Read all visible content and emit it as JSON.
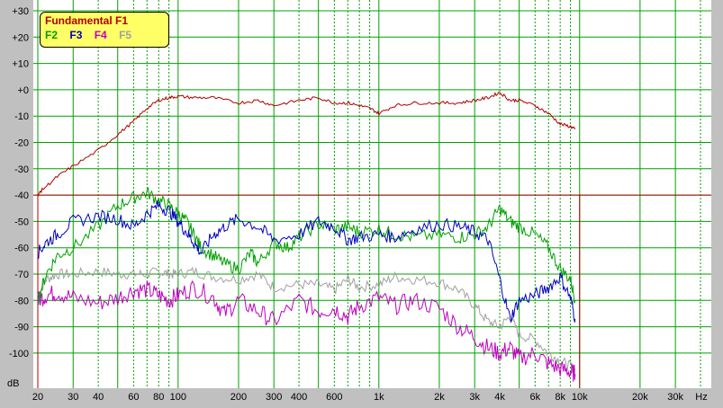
{
  "chart_data": {
    "type": "line",
    "title": "",
    "ylabel": "dB",
    "xlabel": "Hz",
    "x_scale": "log",
    "xlim": [
      20,
      40000
    ],
    "ylim": [
      -110,
      30
    ],
    "y_ticks": [
      "+30",
      "+20",
      "+10",
      "+0",
      "-10",
      "-20",
      "-30",
      "-40",
      "-50",
      "-60",
      "-70",
      "-80",
      "-90",
      "-100"
    ],
    "x_ticks": [
      "20",
      "30",
      "40",
      "60",
      "80",
      "100",
      "200",
      "300",
      "400",
      "600",
      "1k",
      "2k",
      "3k",
      "4k",
      "6k",
      "8k",
      "10k",
      "20k",
      "30k",
      "Hz"
    ],
    "reference_line_db": -40,
    "legend": {
      "title": "Fundamental F1",
      "items": [
        "F2",
        "F3",
        "F4",
        "F5"
      ]
    },
    "colors": {
      "F1": "#b00000",
      "F2": "#00a000",
      "F3": "#0000c0",
      "F4": "#c000c0",
      "F5": "#a0a0a0",
      "grid": "#00a000",
      "plot_bg": "#ffffff"
    },
    "series": [
      {
        "name": "Fundamental F1",
        "x": [
          20,
          21,
          25,
          30,
          40,
          50,
          60,
          70,
          80,
          90,
          100,
          120,
          150,
          200,
          250,
          300,
          400,
          500,
          600,
          700,
          800,
          900,
          1000,
          1200,
          1500,
          2000,
          2500,
          3000,
          3500,
          4000,
          4500,
          5000,
          6000,
          7000,
          8000,
          9000,
          9500
        ],
        "values": [
          -40,
          -38,
          -33,
          -29,
          -23,
          -17,
          -12,
          -7,
          -4,
          -3,
          -2.5,
          -3,
          -3,
          -5,
          -4,
          -6,
          -4,
          -3,
          -5,
          -5,
          -6,
          -7,
          -9,
          -6,
          -5,
          -5,
          -5,
          -4,
          -3,
          -1,
          -4,
          -4,
          -6,
          -9,
          -13,
          -14,
          -15
        ]
      },
      {
        "name": "F2",
        "x": [
          20,
          22,
          25,
          30,
          40,
          50,
          60,
          70,
          80,
          90,
          100,
          110,
          120,
          130,
          150,
          170,
          200,
          230,
          250,
          300,
          350,
          400,
          500,
          600,
          700,
          800,
          1000,
          1200,
          1500,
          2000,
          2500,
          3000,
          3500,
          4000,
          4500,
          5000,
          6000,
          7000,
          8000,
          9000,
          9500
        ],
        "values": [
          -80,
          -70,
          -63,
          -60,
          -52,
          -44,
          -41,
          -39,
          -42,
          -44,
          -47,
          -50,
          -55,
          -60,
          -63,
          -66,
          -68,
          -62,
          -66,
          -58,
          -60,
          -56,
          -51,
          -53,
          -52,
          -54,
          -53,
          -55,
          -56,
          -55,
          -56,
          -55,
          -52,
          -45,
          -50,
          -52,
          -55,
          -60,
          -68,
          -72,
          -80
        ]
      },
      {
        "name": "F3",
        "x": [
          20,
          22,
          25,
          30,
          40,
          50,
          60,
          70,
          80,
          90,
          100,
          110,
          120,
          130,
          150,
          170,
          200,
          250,
          300,
          400,
          500,
          600,
          700,
          800,
          1000,
          1200,
          1500,
          2000,
          2500,
          3000,
          3500,
          4000,
          4500,
          5000,
          6000,
          7000,
          8000,
          9000,
          9500
        ],
        "values": [
          -62,
          -58,
          -55,
          -50,
          -48,
          -49,
          -52,
          -47,
          -44,
          -46,
          -50,
          -54,
          -58,
          -62,
          -55,
          -52,
          -49,
          -52,
          -57,
          -55,
          -50,
          -52,
          -57,
          -56,
          -55,
          -56,
          -53,
          -51,
          -52,
          -54,
          -57,
          -72,
          -87,
          -80,
          -78,
          -75,
          -71,
          -79,
          -87
        ]
      },
      {
        "name": "F4",
        "x": [
          20,
          22,
          25,
          30,
          40,
          50,
          60,
          70,
          80,
          90,
          100,
          120,
          150,
          170,
          200,
          250,
          300,
          400,
          500,
          600,
          700,
          800,
          1000,
          1200,
          1500,
          2000,
          2500,
          3000,
          3500,
          4000,
          4500,
          5000,
          6000,
          7000,
          8000,
          9000,
          9500
        ],
        "values": [
          -80,
          -78,
          -77,
          -79,
          -81,
          -79,
          -76,
          -76,
          -78,
          -80,
          -78,
          -75,
          -79,
          -85,
          -80,
          -84,
          -88,
          -80,
          -84,
          -83,
          -86,
          -82,
          -79,
          -82,
          -80,
          -83,
          -90,
          -94,
          -98,
          -100,
          -98,
          -102,
          -100,
          -104,
          -106,
          -107,
          -108
        ]
      },
      {
        "name": "F5",
        "x": [
          20,
          22,
          25,
          30,
          40,
          50,
          60,
          70,
          80,
          90,
          100,
          120,
          150,
          200,
          250,
          300,
          400,
          500,
          600,
          700,
          800,
          1000,
          1200,
          1500,
          2000,
          2500,
          3000,
          3500,
          4000,
          4500,
          5000,
          6000,
          7000,
          8000,
          9000,
          9500
        ],
        "values": [
          -78,
          -72,
          -70,
          -70,
          -69,
          -70,
          -70,
          -70,
          -69,
          -70,
          -70,
          -69,
          -71,
          -72,
          -70,
          -75,
          -74,
          -74,
          -76,
          -72,
          -75,
          -74,
          -71,
          -72,
          -73,
          -76,
          -82,
          -88,
          -90,
          -86,
          -93,
          -95,
          -100,
          -103,
          -105,
          -106
        ]
      }
    ]
  }
}
